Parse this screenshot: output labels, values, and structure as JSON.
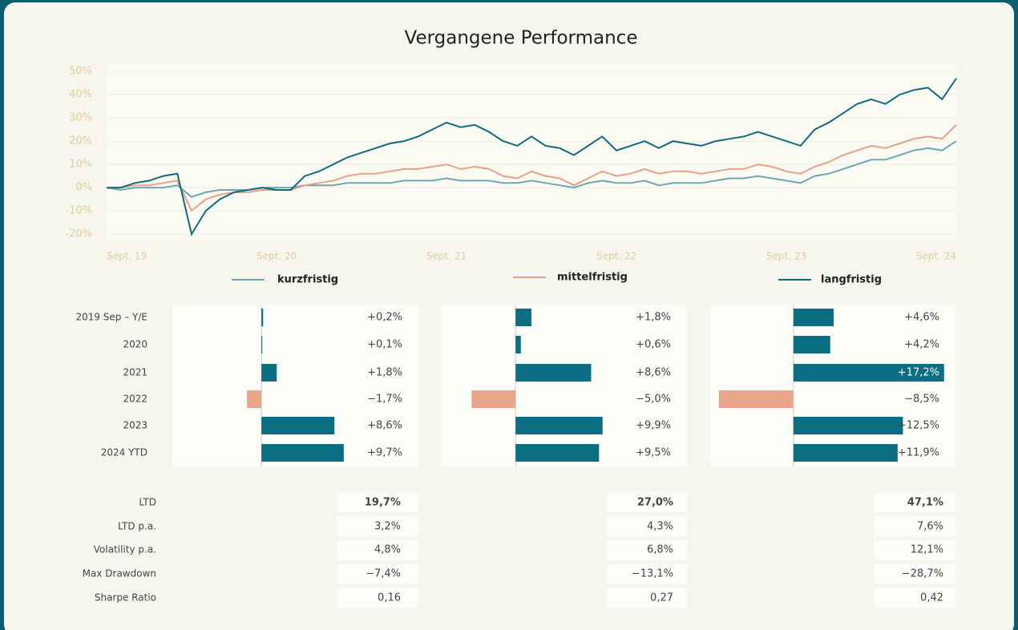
{
  "chart_data": [
    {
      "type": "line",
      "title": "Vergangene Performance",
      "x": [
        "2019-09",
        "2019-10",
        "2019-11",
        "2019-12",
        "2020-01",
        "2020-02",
        "2020-03",
        "2020-04",
        "2020-05",
        "2020-06",
        "2020-07",
        "2020-08",
        "2020-09",
        "2020-10",
        "2020-11",
        "2020-12",
        "2021-01",
        "2021-02",
        "2021-03",
        "2021-04",
        "2021-05",
        "2021-06",
        "2021-07",
        "2021-08",
        "2021-09",
        "2021-10",
        "2021-11",
        "2021-12",
        "2022-01",
        "2022-02",
        "2022-03",
        "2022-04",
        "2022-05",
        "2022-06",
        "2022-07",
        "2022-08",
        "2022-09",
        "2022-10",
        "2022-11",
        "2022-12",
        "2023-01",
        "2023-02",
        "2023-03",
        "2023-04",
        "2023-05",
        "2023-06",
        "2023-07",
        "2023-08",
        "2023-09",
        "2023-10",
        "2023-11",
        "2023-12",
        "2024-01",
        "2024-02",
        "2024-03",
        "2024-04",
        "2024-05",
        "2024-06",
        "2024-07",
        "2024-08",
        "2024-09"
      ],
      "xticks": [
        {
          "value": "2019-09",
          "label": "Sept. 19"
        },
        {
          "value": "2020-09",
          "label": "Sept. 20"
        },
        {
          "value": "2021-09",
          "label": "Sept. 21"
        },
        {
          "value": "2022-09",
          "label": "Sept. 22"
        },
        {
          "value": "2023-09",
          "label": "Sept. 23"
        },
        {
          "value": "2024-09",
          "label": "Sept. 24"
        }
      ],
      "ylim": [
        -23.4,
        52.8
      ],
      "yticks": [
        {
          "value": -20,
          "label": "-20%"
        },
        {
          "value": -10,
          "label": "-10%"
        },
        {
          "value": 0,
          "label": "0%"
        },
        {
          "value": 10,
          "label": "10%"
        },
        {
          "value": 20,
          "label": "20%"
        },
        {
          "value": 30,
          "label": "30%"
        },
        {
          "value": 40,
          "label": "40%"
        },
        {
          "value": 50,
          "label": "50%"
        }
      ],
      "grid": true,
      "series": [
        {
          "name": "kurzfristig",
          "color": "#6aa7b0",
          "values": [
            0,
            -1,
            0,
            0,
            0,
            1,
            -4,
            -2,
            -1,
            -1,
            -1,
            0,
            0,
            0,
            1,
            1,
            1,
            2,
            2,
            2,
            2,
            3,
            3,
            3,
            4,
            3,
            3,
            3,
            2,
            2,
            3,
            2,
            1,
            0,
            2,
            3,
            2,
            2,
            3,
            1,
            2,
            2,
            2,
            3,
            4,
            4,
            5,
            4,
            3,
            2,
            5,
            6,
            8,
            10,
            12,
            12,
            14,
            16,
            17,
            16,
            20
          ]
        },
        {
          "name": "mittelfristig",
          "color": "#e8a184",
          "values": [
            0,
            0,
            1,
            1,
            2,
            3,
            -10,
            -5,
            -3,
            -2,
            -2,
            -1,
            -1,
            -1,
            1,
            2,
            3,
            5,
            6,
            6,
            7,
            8,
            8,
            9,
            10,
            8,
            9,
            8,
            5,
            4,
            7,
            5,
            4,
            1,
            4,
            7,
            5,
            6,
            8,
            6,
            7,
            7,
            6,
            7,
            8,
            8,
            10,
            9,
            7,
            6,
            9,
            11,
            14,
            16,
            18,
            17,
            19,
            21,
            22,
            21,
            27
          ]
        },
        {
          "name": "langfristig",
          "color": "#0e6b7e",
          "values": [
            0,
            0,
            2,
            3,
            5,
            6,
            -20,
            -10,
            -5,
            -2,
            -1,
            0,
            -1,
            -1,
            5,
            7,
            10,
            13,
            15,
            17,
            19,
            20,
            22,
            25,
            28,
            26,
            27,
            24,
            20,
            18,
            22,
            18,
            17,
            14,
            18,
            22,
            16,
            18,
            20,
            17,
            20,
            19,
            18,
            20,
            21,
            22,
            24,
            22,
            20,
            18,
            25,
            28,
            32,
            36,
            38,
            36,
            40,
            42,
            43,
            38,
            47
          ]
        }
      ]
    },
    {
      "type": "bar",
      "orientation": "horizontal",
      "categories": [
        "2019 Sep – Y/E",
        "2020",
        "2021",
        "2022",
        "2023",
        "2024 YTD"
      ],
      "values": [
        0.2,
        0.1,
        1.8,
        -1.7,
        8.6,
        9.7
      ],
      "value_labels": [
        "+0,2%",
        "+0,1%",
        "+1,8%",
        "−1,7%",
        "+8,6%",
        "+9,7%"
      ],
      "xlim": [
        -10.5,
        18.5
      ],
      "color": "#0b6e82",
      "negative_color": "#e8a68a"
    },
    {
      "type": "bar",
      "orientation": "horizontal",
      "values": [
        1.8,
        0.6,
        8.6,
        -5.0,
        9.9,
        9.5
      ],
      "value_labels": [
        "+1,8%",
        "+0,6%",
        "+8,6%",
        "−5,0%",
        "+9,9%",
        "+9,5%"
      ],
      "xlim": [
        -8.5,
        19.5
      ],
      "color": "#0b6e82",
      "negative_color": "#e8a68a"
    },
    {
      "type": "bar",
      "orientation": "horizontal",
      "values": [
        4.6,
        4.2,
        17.2,
        -8.5,
        12.5,
        11.9
      ],
      "value_labels": [
        "+4,6%",
        "+4,2%",
        "+17,2%",
        "−8,5%",
        "+12,5%",
        "+11,9%"
      ],
      "xlim": [
        -9.5,
        18.5
      ],
      "color": "#0b6e82",
      "negative_color": "#e8a68a"
    }
  ],
  "stats": {
    "rows": [
      {
        "label": "LTD",
        "values": [
          "19,7%",
          "27,0%",
          "47,1%"
        ]
      },
      {
        "label": "LTD p.a.",
        "values": [
          "3,2%",
          "4,3%",
          "7,6%"
        ]
      },
      {
        "label": "Volatility p.a.",
        "values": [
          "4,8%",
          "6,8%",
          "12,1%"
        ]
      },
      {
        "label": "Max Drawdown",
        "values": [
          "−7,4%",
          "−13,1%",
          "−28,7%"
        ]
      },
      {
        "label": "Sharpe Ratio",
        "values": [
          "0,16",
          "0,27",
          "0,42"
        ]
      }
    ]
  }
}
